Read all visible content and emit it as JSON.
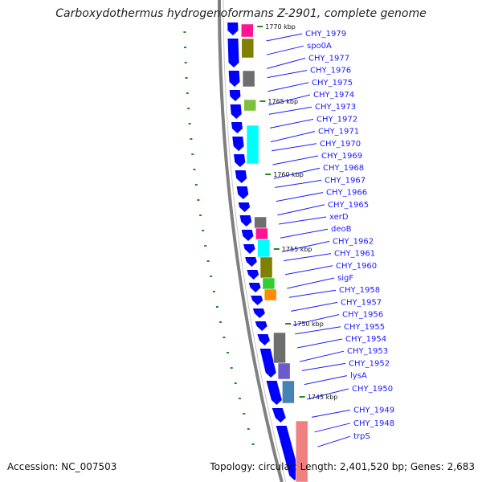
{
  "title": "Carboxydothermus hydrogenoformans Z-2901, complete genome",
  "footer": {
    "accession": "Accession: NC_007503",
    "stats": "Topology: circular; Length: 2,401,520 bp; Genes: 2,683"
  },
  "kbp_labels": [
    "1770 kbp",
    "1765 kbp",
    "1760 kbp",
    "1755 kbp",
    "1750 kbp",
    "1745 kbp"
  ],
  "gene_labels": [
    "CHY_1979",
    "spo0A",
    "CHY_1977",
    "CHY_1976",
    "CHY_1975",
    "CHY_1974",
    "CHY_1973",
    "CHY_1972",
    "CHY_1971",
    "CHY_1970",
    "CHY_1969",
    "CHY_1968",
    "CHY_1967",
    "CHY_1966",
    "CHY_1965",
    "xerD",
    "deoB",
    "CHY_1962",
    "CHY_1961",
    "CHY_1960",
    "sigF",
    "CHY_1958",
    "CHY_1957",
    "CHY_1956",
    "CHY_1955",
    "CHY_1954",
    "CHY_1953",
    "CHY_1952",
    "lysA",
    "CHY_1950",
    "CHY_1949",
    "CHY_1948",
    "trpS"
  ],
  "colors": {
    "gene_arrow": "#0000ff",
    "label": "#1a1aff",
    "backbone": "#808080",
    "tick": "#1e8c1e",
    "cog": [
      "#ff1493",
      "#808000",
      "#6e6e6e",
      "#00ffff",
      "#7fbf3f",
      "#32cd32",
      "#ff8c00",
      "#6a5acd",
      "#4682b4",
      "#f08080"
    ]
  }
}
